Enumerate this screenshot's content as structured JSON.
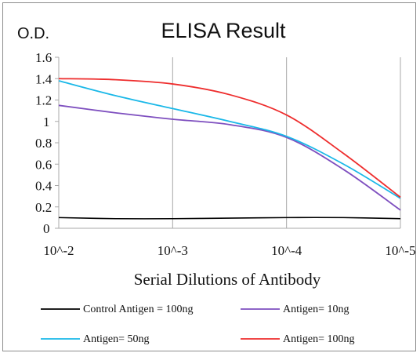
{
  "chart_data": {
    "type": "line",
    "title": "ELISA Result",
    "ylabel": "O.D.",
    "xlabel": "Serial Dilutions  of Antibody",
    "x_ticks": [
      "10^-2",
      "10^-3",
      "10^-4",
      "10^-5"
    ],
    "x": [
      0.01,
      0.001,
      0.0001,
      1e-05
    ],
    "y_ticks": [
      "0",
      "0.2",
      "0.4",
      "0.6",
      "0.8",
      "1",
      "1.2",
      "1.4",
      "1.6"
    ],
    "ylim": [
      0,
      1.6
    ],
    "x_scale": "log",
    "grid": "vertical",
    "legend_position": "bottom",
    "series": [
      {
        "name": "Control Antigen = 100ng",
        "color": "#000000",
        "x": [
          0.01,
          0.00316,
          0.001,
          0.000316,
          0.0001,
          3.16e-05,
          1e-05
        ],
        "values": [
          0.1,
          0.09,
          0.09,
          0.095,
          0.1,
          0.1,
          0.09
        ]
      },
      {
        "name": "Antigen= 10ng",
        "color": "#7e4fbf",
        "x": [
          0.01,
          0.00316,
          0.001,
          0.000316,
          0.0001,
          3.16e-05,
          1e-05
        ],
        "values": [
          1.15,
          1.08,
          1.02,
          0.97,
          0.85,
          0.55,
          0.17
        ]
      },
      {
        "name": "Antigen= 50ng",
        "color": "#1ab8e8",
        "x": [
          0.01,
          0.00316,
          0.001,
          0.000316,
          0.0001,
          3.16e-05,
          1e-05
        ],
        "values": [
          1.38,
          1.24,
          1.12,
          1.0,
          0.86,
          0.6,
          0.28
        ]
      },
      {
        "name": "Antigen= 100ng",
        "color": "#ee2d2d",
        "x": [
          0.01,
          0.00316,
          0.001,
          0.000316,
          0.0001,
          3.16e-05,
          1e-05
        ],
        "values": [
          1.4,
          1.39,
          1.35,
          1.25,
          1.06,
          0.7,
          0.29
        ]
      }
    ]
  }
}
